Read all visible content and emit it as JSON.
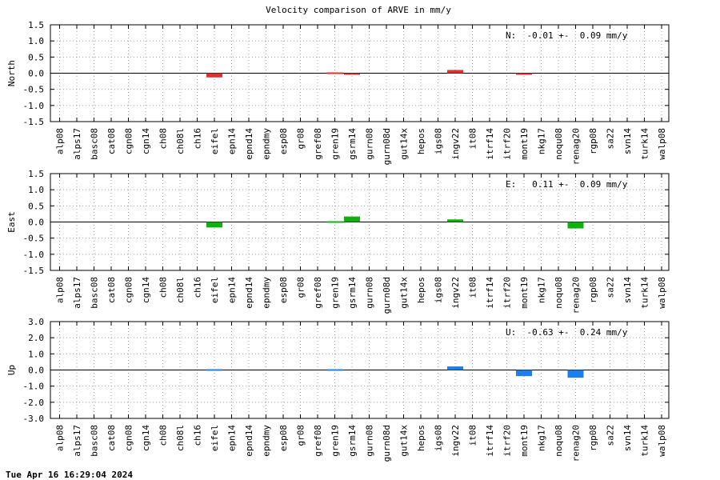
{
  "chart_data": {
    "type": "bar",
    "title": "Velocity comparison of ARVE in mm/y",
    "footer": "Tue Apr 16 16:29:04 2024",
    "categories": [
      "alp08",
      "alps17",
      "basc08",
      "cat08",
      "cgn08",
      "cgn14",
      "ch08",
      "ch08l",
      "ch16",
      "eifel",
      "epn14",
      "epnd14",
      "epndmy",
      "esp08",
      "gr08",
      "gref08",
      "gren19",
      "gsrm14",
      "gurn08",
      "gurn08d",
      "gut14x",
      "hepos",
      "igs08",
      "ingv22",
      "it08",
      "itrf14",
      "itrf20",
      "mont19",
      "nkg17",
      "noqu08",
      "renag20",
      "rgp08",
      "sa22",
      "svn14",
      "turk14",
      "walp08"
    ],
    "panels": [
      {
        "ylabel": "North",
        "ylim": [
          -1.5,
          1.5
        ],
        "yticks": [
          -1.5,
          -1.0,
          -0.5,
          0.0,
          0.5,
          1.0,
          1.5
        ],
        "ytick_labels": [
          "-1.5",
          "-1.0",
          "-0.5",
          "0.0",
          "0.5",
          "1.0",
          "1.5"
        ],
        "color": "#e03030",
        "annotation": "N:  -0.01 +-  0.09 mm/y",
        "values": [
          null,
          null,
          null,
          null,
          null,
          null,
          null,
          null,
          null,
          -0.13,
          null,
          null,
          null,
          null,
          null,
          null,
          0.02,
          -0.05,
          null,
          null,
          null,
          null,
          null,
          0.1,
          null,
          null,
          null,
          -0.05,
          null,
          null,
          null,
          null,
          null,
          null,
          null,
          null
        ]
      },
      {
        "ylabel": "East",
        "ylim": [
          -1.5,
          1.5
        ],
        "yticks": [
          -1.5,
          -1.0,
          -0.5,
          0.0,
          0.5,
          1.0,
          1.5
        ],
        "ytick_labels": [
          "-1.5",
          "-1.0",
          "-0.5",
          "0.0",
          "0.5",
          "1.0",
          "1.5"
        ],
        "color": "#10b010",
        "annotation": "E:   0.11 +-  0.09 mm/y",
        "values": [
          null,
          null,
          null,
          null,
          null,
          null,
          null,
          null,
          null,
          -0.17,
          null,
          null,
          null,
          null,
          null,
          null,
          0.04,
          0.17,
          null,
          null,
          null,
          null,
          null,
          0.08,
          null,
          null,
          null,
          null,
          null,
          null,
          -0.2,
          null,
          null,
          null,
          null,
          null
        ]
      },
      {
        "ylabel": "Up",
        "ylim": [
          -3.0,
          3.0
        ],
        "yticks": [
          -3.0,
          -2.0,
          -1.0,
          0.0,
          1.0,
          2.0,
          3.0
        ],
        "ytick_labels": [
          "-3.0",
          "-2.0",
          "-1.0",
          "0.0",
          "1.0",
          "2.0",
          "3.0"
        ],
        "color": "#1e7fe8",
        "annotation": "U:  -0.63 +-  0.24 mm/y",
        "values": [
          null,
          null,
          null,
          null,
          null,
          null,
          null,
          null,
          null,
          0.04,
          null,
          null,
          null,
          null,
          null,
          null,
          0.04,
          null,
          null,
          null,
          null,
          null,
          null,
          0.22,
          null,
          null,
          null,
          -0.38,
          null,
          null,
          -0.48,
          null,
          null,
          null,
          null,
          null
        ]
      }
    ]
  }
}
